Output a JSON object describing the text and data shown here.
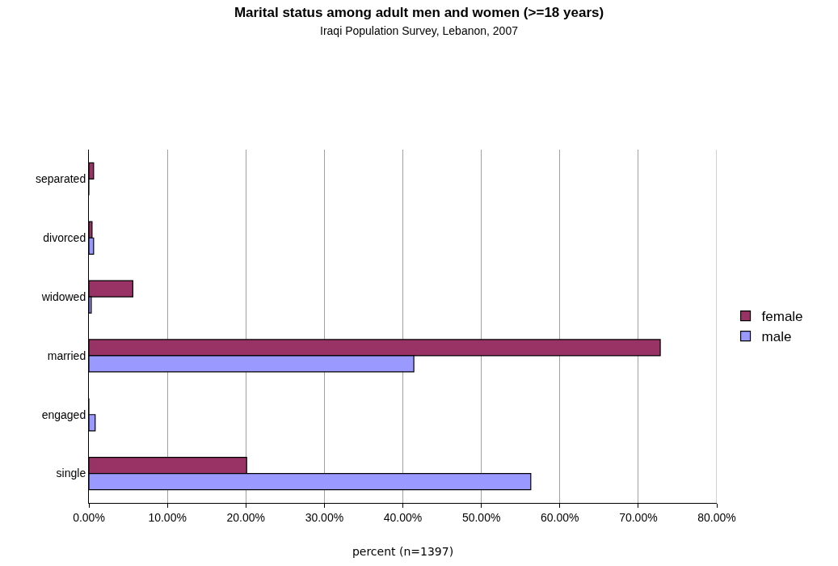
{
  "chart_data": {
    "type": "bar",
    "orientation": "horizontal",
    "title": "Marital status among adult men and women (>=18 years)",
    "subtitle": "Iraqi Population Survey, Lebanon, 2007",
    "xlabel": "percent (n=1397)",
    "categories": [
      "separated",
      "divorced",
      "widowed",
      "married",
      "engaged",
      "single"
    ],
    "series": [
      {
        "name": "female",
        "color": "#993366",
        "values": [
          0.6,
          0.4,
          5.6,
          72.8,
          0,
          20.1
        ]
      },
      {
        "name": "male",
        "color": "#9999ff",
        "values": [
          0,
          0.6,
          0.3,
          41.4,
          0.8,
          56.3
        ]
      }
    ],
    "xlim": [
      0,
      80
    ],
    "xticks": [
      {
        "value": 0,
        "label": "0.00%"
      },
      {
        "value": 10,
        "label": "10.00%"
      },
      {
        "value": 20,
        "label": "20.00%"
      },
      {
        "value": 30,
        "label": "30.00%"
      },
      {
        "value": 40,
        "label": "40.00%"
      },
      {
        "value": 50,
        "label": "50.00%"
      },
      {
        "value": 60,
        "label": "60.00%"
      },
      {
        "value": 70,
        "label": "70.00%"
      },
      {
        "value": 80,
        "label": "80.00%"
      }
    ],
    "grid": "x",
    "legend": "right"
  }
}
